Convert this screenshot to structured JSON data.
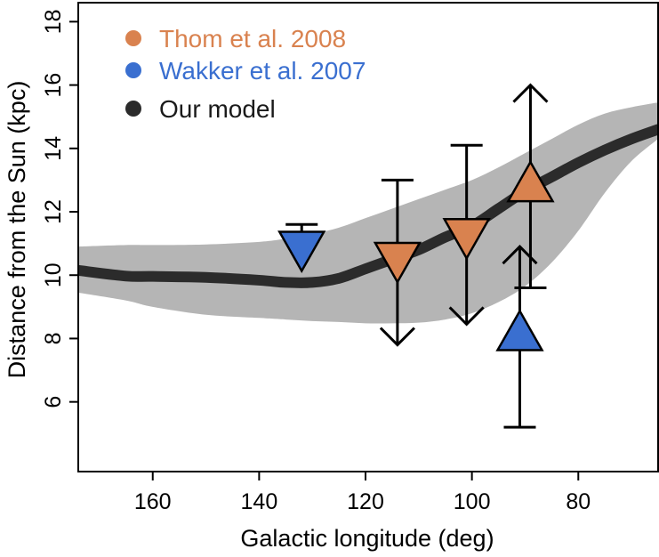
{
  "chart_data": {
    "type": "line",
    "xlabel": "Galactic longitude (deg)",
    "ylabel": "Distance from the Sun (kpc)",
    "xlim": [
      174,
      65
    ],
    "ylim": [
      3.8,
      18.6
    ],
    "x_ticks": [
      160,
      140,
      120,
      100,
      80
    ],
    "x_tick_labels": [
      "160",
      "140",
      "120",
      "100",
      "80"
    ],
    "y_ticks": [
      6,
      8,
      10,
      12,
      14,
      16,
      18
    ],
    "y_tick_labels": [
      "6",
      "8",
      "10",
      "12",
      "14",
      "16",
      "18"
    ],
    "legend": {
      "position": "top-left",
      "entries": [
        {
          "label": "Thom et al. 2008",
          "color": "#d9824f"
        },
        {
          "label": "Wakker et al. 2007",
          "color": "#3a6fd0"
        },
        {
          "label": "Our model",
          "color": "#2b2b2b"
        }
      ]
    },
    "model_line": {
      "name": "Our model",
      "color": "#2b2b2b",
      "x": [
        174,
        165,
        160,
        150,
        140,
        135,
        130,
        125,
        120,
        115,
        110,
        105,
        100,
        95,
        90,
        85,
        80,
        75,
        70,
        65
      ],
      "y": [
        10.15,
        9.97,
        9.96,
        9.93,
        9.84,
        9.77,
        9.77,
        9.9,
        10.2,
        10.5,
        10.8,
        11.2,
        11.55,
        12.1,
        12.65,
        13.1,
        13.55,
        13.95,
        14.3,
        14.6
      ]
    },
    "model_band": {
      "name": "Model range",
      "color": "#b5b5b5",
      "x": [
        174,
        165,
        160,
        150,
        140,
        135,
        130,
        125,
        120,
        115,
        110,
        105,
        100,
        95,
        90,
        85,
        80,
        75,
        70,
        65
      ],
      "upper": [
        10.9,
        10.95,
        10.95,
        10.97,
        11.05,
        11.15,
        11.3,
        11.5,
        11.8,
        12.1,
        12.4,
        12.7,
        13.0,
        13.4,
        13.85,
        14.3,
        14.75,
        15.1,
        15.3,
        15.45
      ],
      "lower": [
        9.45,
        9.2,
        9.0,
        8.75,
        8.65,
        8.6,
        8.55,
        8.52,
        8.48,
        8.48,
        8.5,
        8.6,
        8.8,
        9.15,
        9.65,
        10.4,
        11.4,
        12.6,
        13.6,
        14.3
      ]
    },
    "points": [
      {
        "series": "Wakker et al. 2007",
        "color": "#3a6fd0",
        "x": 132,
        "y": 10.75,
        "marker": "down-triangle",
        "err_low": null,
        "err_high": 11.6,
        "arrow": null
      },
      {
        "series": "Thom et al. 2008",
        "color": "#d9824f",
        "x": 114,
        "y": 10.4,
        "marker": "down-triangle",
        "err_low": null,
        "err_high": 13.0,
        "arrow": "down",
        "arrow_to": 7.8
      },
      {
        "series": "Thom et al. 2008",
        "color": "#d9824f",
        "x": 101,
        "y": 11.15,
        "marker": "down-triangle",
        "err_low": null,
        "err_high": 14.1,
        "arrow": "down",
        "arrow_to": 8.45
      },
      {
        "series": "Thom et al. 2008",
        "color": "#d9824f",
        "x": 89,
        "y": 12.95,
        "marker": "up-triangle",
        "err_low": 9.6,
        "err_high": null,
        "arrow": "up",
        "arrow_to": 16.0
      },
      {
        "series": "Wakker et al. 2007",
        "color": "#3a6fd0",
        "x": 91,
        "y": 8.25,
        "marker": "up-triangle",
        "err_low": 5.2,
        "err_high": null,
        "arrow": "up",
        "arrow_to": 10.9
      }
    ]
  }
}
